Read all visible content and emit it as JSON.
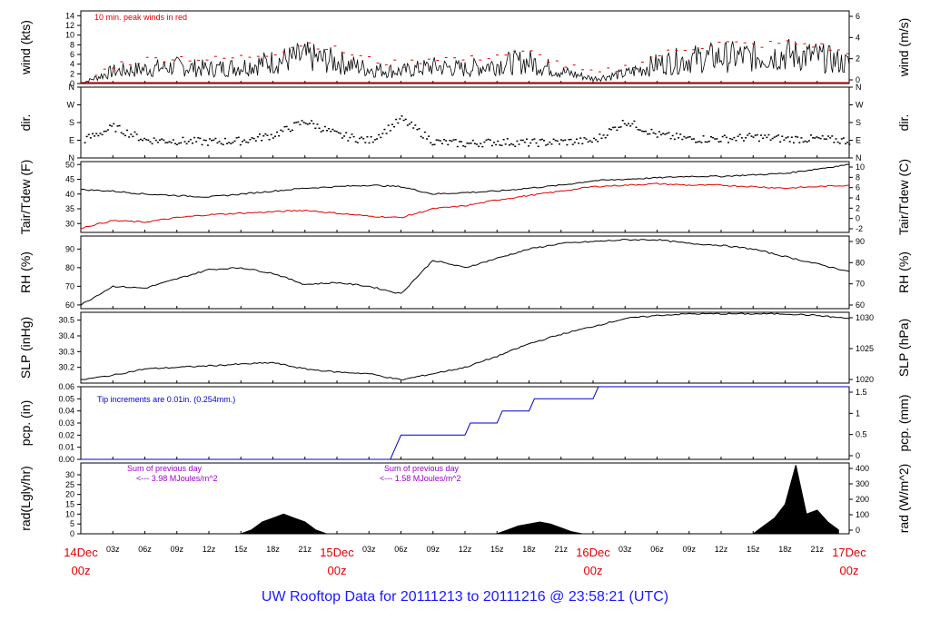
{
  "title": "UW Rooftop Data for 20111213  to  20111216 @ 23:58:21  (UTC)",
  "colors": {
    "black": "#000000",
    "red": "#e00000",
    "blue": "#0000cc",
    "purple": "#9900cc",
    "title": "#1a1aff"
  },
  "time_axis": {
    "hour_ticks": [
      "03z",
      "06z",
      "09z",
      "12z",
      "15z",
      "18z",
      "21z",
      "03z",
      "06z",
      "09z",
      "12z",
      "15z",
      "18z",
      "21z",
      "03z",
      "06z",
      "09z",
      "12z",
      "15z",
      "18z",
      "21z"
    ],
    "day_labels": [
      {
        "day": "14Dec",
        "hour": "00z"
      },
      {
        "day": "15Dec",
        "hour": "00z"
      },
      {
        "day": "16Dec",
        "hour": "00z"
      },
      {
        "day": "17Dec",
        "hour": "00z"
      }
    ]
  },
  "chart_data": [
    {
      "type": "line",
      "panel": "wind",
      "ylabel": "wind (kts)",
      "ylabel_right": "wind (m/s)",
      "ylim": [
        0,
        15
      ],
      "yticks": [
        "0",
        "2",
        "4",
        "6",
        "8",
        "10",
        "12",
        "14"
      ],
      "yticks_right": [
        "0",
        "2",
        "4",
        "6"
      ],
      "annotation": "10 min. peak winds in red",
      "x_hours": [
        0,
        3,
        6,
        9,
        12,
        15,
        18,
        21,
        24,
        27,
        30,
        33,
        36,
        39,
        42,
        45,
        48,
        51,
        54,
        57,
        60,
        63,
        66,
        69,
        72
      ],
      "series": [
        {
          "values": [
            0,
            2.5,
            3,
            3.5,
            3,
            3.5,
            4.5,
            5.5,
            4.5,
            3,
            2.5,
            3.5,
            3,
            4,
            4.5,
            2.5,
            1,
            2,
            4,
            5,
            5.5,
            5.5,
            6,
            5.5,
            4
          ],
          "color": "#000000"
        },
        {
          "values": [
            0,
            4,
            5,
            5.5,
            5,
            5.5,
            6.5,
            8.5,
            7,
            5,
            4,
            5.5,
            5,
            6,
            6.5,
            4,
            2,
            3.5,
            6,
            7.5,
            8.5,
            8,
            8.5,
            8,
            6
          ],
          "color": "#e00000"
        }
      ]
    },
    {
      "type": "scatter",
      "panel": "dir",
      "ylabel": "dir.",
      "ylabel_right": "dir.",
      "yticks": [
        "N",
        "W",
        "S",
        "E",
        "N"
      ],
      "yticks_right": [
        "N",
        "W",
        "S",
        "E",
        "N"
      ],
      "ylim": [
        0,
        360
      ],
      "x_hours": [
        0,
        3,
        6,
        9,
        12,
        15,
        18,
        21,
        24,
        27,
        30,
        33,
        36,
        39,
        42,
        45,
        48,
        51,
        54,
        57,
        60,
        63,
        66,
        69,
        72
      ],
      "series": [
        {
          "values": [
            90,
            160,
            95,
            90,
            85,
            90,
            120,
            190,
            120,
            90,
            200,
            85,
            75,
            85,
            80,
            85,
            90,
            190,
            120,
            100,
            100,
            110,
            100,
            100,
            90
          ],
          "color": "#000000"
        }
      ]
    },
    {
      "type": "line",
      "panel": "temperature",
      "ylabel": "Tair/Tdew (F)",
      "ylabel_right": "Tair/Tdew (C)",
      "ylim": [
        27,
        51
      ],
      "yticks": [
        "30",
        "35",
        "40",
        "45",
        "50"
      ],
      "yticks_right": [
        "-2",
        "0",
        "2",
        "4",
        "6",
        "8",
        "10"
      ],
      "x_hours": [
        0,
        3,
        6,
        9,
        12,
        15,
        18,
        21,
        24,
        27,
        30,
        33,
        36,
        39,
        42,
        45,
        48,
        51,
        54,
        57,
        60,
        63,
        66,
        69,
        72
      ],
      "series": [
        {
          "name": "Tair",
          "values": [
            41.5,
            41,
            40,
            39.5,
            39,
            40,
            41,
            42,
            42.5,
            43,
            42.5,
            40,
            40.5,
            41,
            42,
            43,
            44.5,
            45,
            45.5,
            46,
            46,
            46.5,
            47,
            48.5,
            50
          ],
          "color": "#000000"
        },
        {
          "name": "Tdew",
          "values": [
            28.5,
            31,
            30.5,
            32,
            33,
            33.5,
            34,
            34.5,
            33.5,
            32.5,
            32,
            35,
            36,
            38,
            39.5,
            41,
            42.5,
            43,
            43.5,
            43,
            43,
            42.5,
            42,
            42.5,
            43
          ],
          "color": "#e00000"
        }
      ]
    },
    {
      "type": "line",
      "panel": "rh",
      "ylabel": "RH (%)",
      "ylabel_right": "RH (%)",
      "ylim": [
        58,
        97
      ],
      "yticks": [
        "60",
        "70",
        "80",
        "90"
      ],
      "yticks_right": [
        "60",
        "70",
        "80",
        "90"
      ],
      "x_hours": [
        0,
        3,
        6,
        9,
        12,
        15,
        18,
        21,
        24,
        27,
        30,
        33,
        36,
        39,
        42,
        45,
        48,
        51,
        54,
        57,
        60,
        63,
        66,
        69,
        72
      ],
      "series": [
        {
          "values": [
            60,
            70,
            69,
            74,
            79,
            80,
            77,
            71,
            72,
            70,
            66,
            84,
            80,
            85,
            90,
            93,
            94,
            95,
            95,
            93,
            92,
            90,
            86,
            82,
            78
          ],
          "color": "#000000"
        }
      ]
    },
    {
      "type": "line",
      "panel": "slp",
      "ylabel": "SLP (inHg)",
      "ylabel_right": "SLP (hPa)",
      "ylim": [
        30.1,
        30.55
      ],
      "yticks": [
        "30.2",
        "30.3",
        "30.4",
        "30.5"
      ],
      "yticks_right": [
        "1020",
        "1025",
        "1030"
      ],
      "x_hours": [
        0,
        3,
        6,
        9,
        12,
        15,
        18,
        21,
        24,
        27,
        30,
        33,
        36,
        39,
        42,
        45,
        48,
        51,
        54,
        57,
        60,
        63,
        66,
        69,
        72
      ],
      "series": [
        {
          "values": [
            30.12,
            30.15,
            30.19,
            30.2,
            30.21,
            30.22,
            30.23,
            30.19,
            30.17,
            30.16,
            30.12,
            30.16,
            30.2,
            30.27,
            30.35,
            30.41,
            30.46,
            30.51,
            30.53,
            30.54,
            30.54,
            30.54,
            30.54,
            30.53,
            30.51
          ],
          "color": "#000000"
        }
      ]
    },
    {
      "type": "line",
      "panel": "precip",
      "ylabel": "pcp. (in)",
      "ylabel_right": "pcp. (mm)",
      "ylim": [
        0,
        0.06
      ],
      "yticks": [
        "0.00",
        "0.01",
        "0.02",
        "0.03",
        "0.04",
        "0.05",
        "0.06"
      ],
      "yticks_right": [
        "0",
        "0.5",
        "1",
        "1.5"
      ],
      "annotation": "Tip increments are 0.01in. (0.254mm.)",
      "x_hours": [
        0,
        29,
        29.5,
        30,
        36,
        36.5,
        39,
        39.5,
        42,
        42.5,
        48,
        48.5,
        72
      ],
      "series": [
        {
          "values": [
            0,
            0,
            0.01,
            0.02,
            0.02,
            0.03,
            0.03,
            0.04,
            0.04,
            0.05,
            0.05,
            0.06,
            0.06
          ],
          "color": "#0000cc"
        }
      ]
    },
    {
      "type": "area",
      "panel": "radiation",
      "ylabel": "rad(Lgly/hr)",
      "ylabel_right": "rad (W/m^2)",
      "ylim": [
        0,
        36
      ],
      "yticks": [
        "0",
        "5",
        "10",
        "15",
        "20",
        "25",
        "30"
      ],
      "yticks_right": [
        "0",
        "100",
        "200",
        "300",
        "400"
      ],
      "annotations": [
        "Sum of previous day",
        "<--- 3.98 MJoules/m^2",
        "Sum of previous day",
        "<--- 1.58 MJoules/m^2"
      ],
      "x_hours": [
        0,
        15,
        16,
        17,
        18,
        19,
        20,
        21,
        22,
        23,
        39,
        40,
        41,
        42,
        43,
        44,
        45,
        46,
        47,
        63,
        64,
        65,
        66,
        67,
        68,
        69,
        70,
        71
      ],
      "series": [
        {
          "values": [
            0,
            0,
            2,
            6,
            8,
            10,
            8,
            6,
            2,
            0,
            0,
            2,
            4,
            5,
            6,
            5,
            3,
            1,
            0,
            0,
            4,
            8,
            15,
            35,
            10,
            12,
            6,
            2
          ],
          "color": "#000000"
        }
      ]
    }
  ]
}
